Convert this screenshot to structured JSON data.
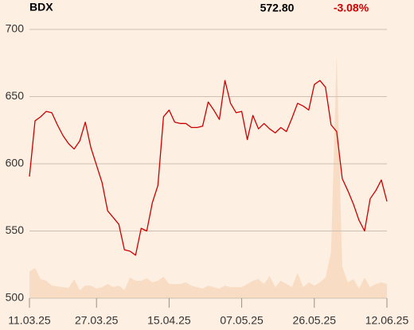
{
  "chart_data": {
    "type": "line",
    "title": "BDX",
    "last_price": "572.80",
    "change": "-3.08%",
    "change_color": "#cc0000",
    "categories": [
      "11.03.25",
      null,
      null,
      null,
      null,
      null,
      null,
      null,
      null,
      null,
      null,
      null,
      "27.03.25",
      null,
      null,
      null,
      null,
      null,
      null,
      null,
      null,
      null,
      null,
      null,
      null,
      "15.04.25",
      null,
      null,
      null,
      null,
      null,
      null,
      null,
      null,
      null,
      null,
      null,
      null,
      "07.05.25",
      null,
      null,
      null,
      null,
      null,
      null,
      null,
      null,
      null,
      null,
      null,
      null,
      "26.05.25",
      null,
      null,
      null,
      null,
      null,
      null,
      null,
      null,
      null,
      null,
      null,
      null,
      "12.06.25"
    ],
    "series": [
      {
        "name": "BDX",
        "color": "#cc0000",
        "values": [
          590.5,
          632,
          635,
          639,
          638,
          629,
          621,
          615,
          611,
          617,
          631,
          612,
          599,
          586,
          565,
          560,
          555,
          536,
          535,
          532,
          552,
          550,
          571,
          584,
          635,
          640,
          631,
          630,
          630,
          627,
          627,
          628,
          646,
          640,
          633,
          662,
          645,
          638,
          639,
          618,
          636,
          626,
          630,
          626,
          623,
          627,
          624,
          634,
          645,
          643,
          640,
          659,
          662,
          657,
          629,
          624,
          589,
          580,
          570,
          558,
          550,
          574,
          580,
          588,
          572
        ]
      }
    ],
    "volume": {
      "color": "#f9dcc4",
      "values": [
        10,
        11.2,
        7.1,
        6.5,
        4.7,
        4.4,
        4.1,
        3.8,
        7.1,
        3,
        4.7,
        4.7,
        3.6,
        4.1,
        5.3,
        4.1,
        4.7,
        3,
        7.7,
        6.5,
        6.5,
        7.4,
        5.9,
        6.5,
        8,
        5.3,
        5.3,
        5.3,
        5.9,
        4.7,
        4.1,
        3.6,
        4.7,
        4.1,
        3.6,
        4.7,
        4.1,
        4.1,
        4.1,
        5.3,
        6.5,
        7.1,
        5.3,
        8.3,
        4.1,
        6.5,
        5.3,
        4.1,
        9.5,
        4.1,
        5.9,
        4.7,
        5.9,
        7.7,
        17.2,
        91.1,
        11.8,
        5.9,
        7.1,
        3.6,
        7.7,
        4.1,
        5.3,
        5.9,
        5.3
      ]
    },
    "ylim": [
      500,
      700
    ],
    "yticks": [
      500,
      550,
      600,
      650,
      700
    ],
    "y2lim": [
      0,
      100
    ],
    "grid": true
  }
}
